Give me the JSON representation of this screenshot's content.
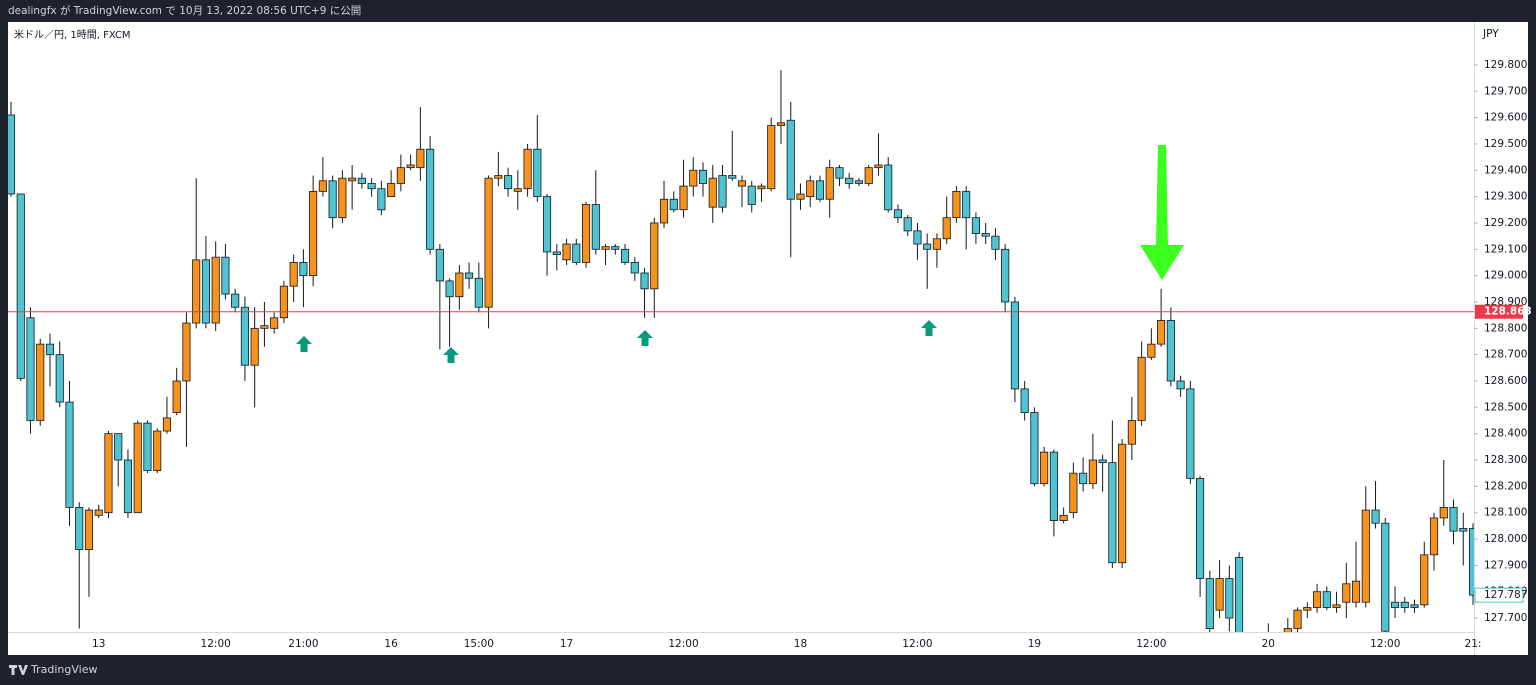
{
  "header": {
    "text": "dealingfx が TradingView.com で 10月 13, 2022 08:56 UTC+9 に公開"
  },
  "footer": {
    "brand": "TradingView"
  },
  "chart_data": {
    "type": "candlestick",
    "symbol": "米ドル／円, 1時間, FXCM",
    "currency": "JPY",
    "up_color": "#f7931a",
    "down_color": "#4fc3cf",
    "grid": false,
    "ylim": [
      127.647,
      129.963
    ],
    "yticks": [
      {
        "value": 127.7,
        "label": "127.700"
      },
      {
        "value": 127.8,
        "label": "127.800"
      },
      {
        "value": 127.9,
        "label": "127.900"
      },
      {
        "value": 128.0,
        "label": "128.000"
      },
      {
        "value": 128.1,
        "label": "128.100"
      },
      {
        "value": 128.2,
        "label": "128.200"
      },
      {
        "value": 128.3,
        "label": "128.300"
      },
      {
        "value": 128.4,
        "label": "128.400"
      },
      {
        "value": 128.5,
        "label": "128.500"
      },
      {
        "value": 128.6,
        "label": "128.600"
      },
      {
        "value": 128.7,
        "label": "128.700"
      },
      {
        "value": 128.8,
        "label": "128.800"
      },
      {
        "value": 128.9,
        "label": "128.900"
      },
      {
        "value": 129.0,
        "label": "129.000"
      },
      {
        "value": 129.1,
        "label": "129.100"
      },
      {
        "value": 129.2,
        "label": "129.200"
      },
      {
        "value": 129.3,
        "label": "129.300"
      },
      {
        "value": 129.4,
        "label": "129.400"
      },
      {
        "value": 129.5,
        "label": "129.500"
      },
      {
        "value": 129.6,
        "label": "129.600"
      },
      {
        "value": 129.7,
        "label": "129.700"
      },
      {
        "value": 129.8,
        "label": "129.800"
      }
    ],
    "xlim": [
      0,
      150
    ],
    "xticks": [
      {
        "value": 9,
        "label": "13"
      },
      {
        "value": 21,
        "label": "12:00"
      },
      {
        "value": 30,
        "label": "21:00"
      },
      {
        "value": 39,
        "label": "16"
      },
      {
        "value": 48,
        "label": "15:00"
      },
      {
        "value": 57,
        "label": "17"
      },
      {
        "value": 69,
        "label": "12:00"
      },
      {
        "value": 81,
        "label": "18"
      },
      {
        "value": 93,
        "label": "12:00"
      },
      {
        "value": 105,
        "label": "19"
      },
      {
        "value": 117,
        "label": "12:00"
      },
      {
        "value": 129,
        "label": "20"
      },
      {
        "value": 141,
        "label": "12:00"
      },
      {
        "value": 150,
        "label": "21:"
      }
    ],
    "horizontal_line": {
      "value": 128.863,
      "color": "#f23645"
    },
    "open": [
      129.61,
      129.31,
      128.84,
      128.45,
      128.74,
      128.7,
      128.52,
      128.12,
      127.96,
      128.09,
      128.1,
      128.4,
      128.3,
      128.1,
      128.44,
      128.26,
      128.41,
      128.48,
      128.6,
      128.82,
      129.06,
      128.82,
      129.07,
      128.93,
      128.88,
      128.66,
      128.8,
      128.8,
      128.84,
      128.96,
      129.05,
      129.0,
      129.32,
      129.36,
      129.22,
      129.36,
      129.37,
      129.35,
      129.33,
      129.3,
      129.35,
      129.41,
      129.41,
      129.48,
      129.1,
      128.98,
      128.92,
      129.01,
      128.99,
      128.88,
      129.37,
      129.38,
      129.32,
      129.33,
      129.48,
      129.3,
      129.09,
      129.06,
      129.12,
      129.05,
      129.27,
      129.1,
      129.11,
      129.1,
      129.05,
      129.01,
      128.95,
      129.2,
      129.29,
      129.25,
      129.34,
      129.4,
      129.26,
      129.38,
      129.38,
      129.34,
      129.34,
      129.33,
      129.33,
      129.57,
      129.59,
      129.29,
      129.3,
      129.36,
      129.29,
      129.41,
      129.37,
      129.36,
      129.35,
      129.41,
      129.42,
      129.25,
      129.22,
      129.17,
      129.12,
      129.1,
      129.14,
      129.22,
      129.32,
      129.22,
      129.16,
      129.15,
      129.1,
      128.9,
      128.57,
      128.48,
      128.21,
      128.33,
      128.07,
      128.1,
      128.25,
      128.21,
      128.3,
      128.29,
      127.91,
      128.36,
      128.45,
      128.69,
      128.74,
      128.83,
      128.6,
      128.57,
      128.23,
      127.85,
      127.73,
      127.85,
      127.93,
      127.6,
      127.52,
      127.58,
      127.62,
      127.58,
      127.66,
      127.73,
      127.74,
      127.8,
      127.74,
      127.76,
      127.76,
      127.76,
      128.11,
      128.06,
      127.76,
      127.76,
      127.75,
      127.75,
      127.94,
      128.08,
      128.12,
      128.04,
      128.04
    ],
    "high": [
      129.66,
      129.31,
      128.88,
      128.76,
      128.78,
      128.75,
      128.6,
      128.14,
      128.12,
      128.13,
      128.41,
      128.4,
      128.34,
      128.45,
      128.45,
      128.42,
      128.54,
      128.65,
      128.86,
      129.37,
      129.15,
      129.13,
      129.12,
      128.95,
      128.92,
      128.88,
      128.9,
      128.86,
      128.98,
      129.08,
      129.1,
      129.38,
      129.45,
      129.38,
      129.4,
      129.42,
      129.39,
      129.37,
      129.36,
      129.4,
      129.46,
      129.46,
      129.64,
      129.53,
      129.12,
      128.99,
      129.04,
      129.05,
      129.05,
      129.38,
      129.47,
      129.41,
      129.4,
      129.5,
      129.61,
      129.31,
      129.12,
      129.14,
      129.14,
      129.28,
      129.4,
      129.12,
      129.12,
      129.12,
      129.07,
      129.03,
      129.22,
      129.36,
      129.32,
      129.44,
      129.45,
      129.43,
      129.42,
      129.42,
      129.55,
      129.38,
      129.36,
      129.35,
      129.6,
      129.78,
      129.66,
      129.35,
      129.38,
      129.38,
      129.44,
      129.42,
      129.39,
      129.37,
      129.42,
      129.54,
      129.45,
      129.27,
      129.23,
      129.2,
      129.16,
      129.16,
      129.3,
      129.34,
      129.34,
      129.24,
      129.2,
      129.18,
      129.12,
      128.92,
      128.6,
      128.5,
      128.35,
      128.34,
      128.12,
      128.29,
      128.31,
      128.4,
      128.32,
      128.45,
      128.38,
      128.54,
      128.75,
      128.8,
      128.95,
      128.88,
      128.62,
      128.6,
      128.24,
      127.88,
      127.92,
      127.9,
      127.95,
      127.62,
      127.64,
      127.68,
      127.64,
      127.7,
      127.74,
      127.76,
      127.83,
      127.82,
      127.8,
      127.91,
      127.99,
      128.2,
      128.22,
      128.08,
      127.82,
      127.78,
      127.77,
      127.99,
      128.1,
      128.3,
      128.15,
      128.1,
      128.06
    ],
    "low": [
      129.3,
      128.6,
      128.4,
      128.43,
      128.58,
      128.5,
      128.05,
      127.66,
      127.78,
      128.08,
      128.08,
      128.2,
      128.08,
      128.1,
      128.25,
      128.25,
      128.4,
      128.47,
      128.35,
      128.8,
      128.8,
      128.79,
      128.91,
      128.86,
      128.6,
      128.5,
      128.73,
      128.78,
      128.82,
      128.9,
      128.88,
      128.96,
      129.3,
      129.18,
      129.2,
      129.25,
      129.33,
      129.3,
      129.23,
      129.3,
      129.32,
      129.4,
      129.36,
      129.08,
      128.72,
      128.73,
      128.87,
      128.95,
      128.86,
      128.8,
      129.34,
      129.3,
      129.25,
      129.3,
      129.28,
      129.0,
      129.02,
      129.04,
      129.04,
      129.03,
      129.08,
      129.04,
      129.08,
      129.04,
      128.98,
      128.84,
      128.84,
      129.18,
      129.24,
      129.22,
      129.3,
      129.3,
      129.2,
      129.24,
      129.36,
      129.26,
      129.24,
      129.28,
      129.32,
      129.5,
      129.07,
      129.25,
      129.26,
      129.28,
      129.22,
      129.34,
      129.33,
      129.34,
      129.34,
      129.38,
      129.24,
      129.2,
      129.15,
      129.06,
      128.95,
      129.03,
      129.12,
      129.2,
      129.1,
      129.12,
      129.12,
      129.06,
      128.86,
      128.52,
      128.45,
      128.2,
      128.2,
      128.01,
      128.06,
      128.08,
      128.18,
      128.19,
      128.18,
      127.89,
      127.89,
      128.3,
      128.43,
      128.68,
      128.73,
      128.58,
      128.54,
      128.21,
      127.78,
      127.6,
      127.7,
      127.65,
      127.55,
      127.48,
      127.5,
      127.55,
      127.55,
      127.56,
      127.64,
      127.7,
      127.72,
      127.73,
      127.72,
      127.7,
      127.74,
      127.74,
      128.04,
      127.62,
      127.7,
      127.72,
      127.72,
      127.74,
      127.88,
      128.05,
      127.98,
      127.9,
      127.75
    ],
    "close": [
      129.31,
      128.61,
      128.45,
      128.74,
      128.7,
      128.52,
      128.12,
      127.96,
      128.11,
      128.11,
      128.4,
      128.3,
      128.1,
      128.44,
      128.26,
      128.41,
      128.46,
      128.6,
      128.82,
      129.06,
      128.82,
      129.07,
      128.93,
      128.88,
      128.66,
      128.8,
      128.81,
      128.84,
      128.96,
      129.05,
      129.0,
      129.32,
      129.36,
      129.22,
      129.37,
      129.37,
      129.35,
      129.33,
      129.25,
      129.35,
      129.41,
      129.42,
      129.48,
      129.1,
      128.98,
      128.92,
      129.01,
      128.99,
      128.88,
      129.37,
      129.38,
      129.33,
      129.33,
      129.48,
      129.3,
      129.09,
      129.08,
      129.12,
      129.05,
      129.27,
      129.1,
      129.11,
      129.1,
      129.05,
      129.01,
      128.95,
      129.2,
      129.29,
      129.25,
      129.34,
      129.4,
      129.35,
      129.37,
      129.26,
      129.37,
      129.36,
      129.27,
      129.34,
      129.57,
      129.58,
      129.29,
      129.31,
      129.36,
      129.29,
      129.41,
      129.37,
      129.35,
      129.35,
      129.41,
      129.42,
      129.25,
      129.22,
      129.17,
      129.12,
      129.1,
      129.14,
      129.22,
      129.32,
      129.22,
      129.16,
      129.15,
      129.1,
      128.9,
      128.57,
      128.48,
      128.21,
      128.33,
      128.07,
      128.09,
      128.25,
      128.21,
      128.3,
      128.29,
      127.91,
      128.36,
      128.45,
      128.69,
      128.74,
      128.83,
      128.6,
      128.57,
      128.23,
      127.85,
      127.66,
      127.85,
      127.7,
      127.6,
      127.52,
      127.58,
      127.62,
      127.58,
      127.66,
      127.73,
      127.74,
      127.8,
      127.74,
      127.75,
      127.83,
      127.84,
      128.11,
      128.06,
      127.65,
      127.74,
      127.74,
      127.74,
      127.94,
      128.08,
      128.12,
      128.03,
      128.03,
      127.787
    ]
  }
}
